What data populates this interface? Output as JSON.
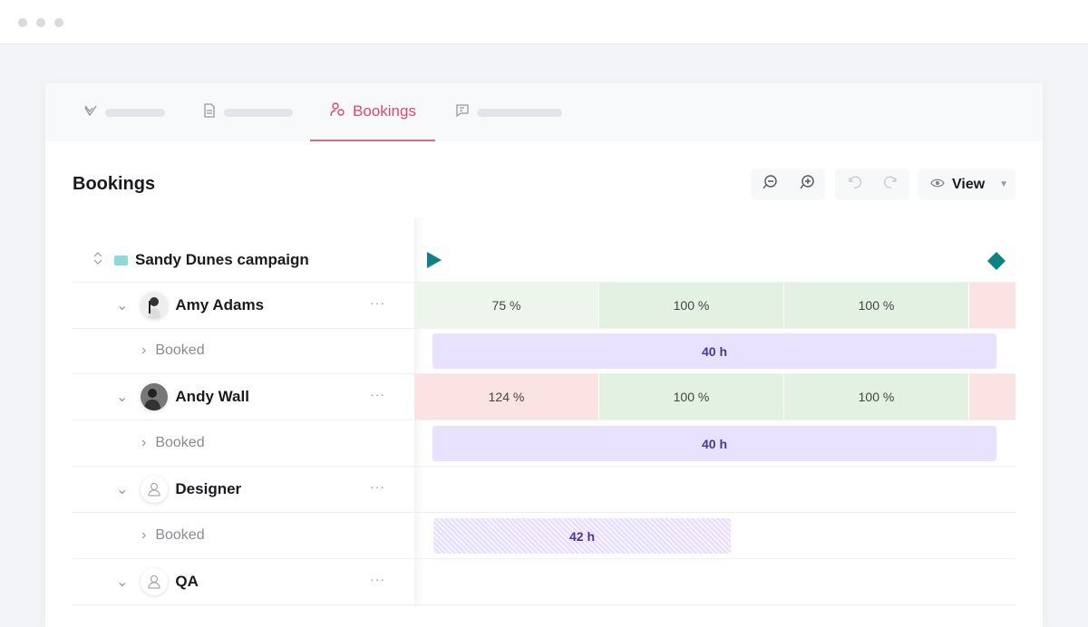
{
  "tabs": [
    {
      "icon": "check-icon"
    },
    {
      "icon": "document-icon"
    },
    {
      "label": "Bookings",
      "icon": "users-icon",
      "active": true
    },
    {
      "icon": "chat-icon"
    }
  ],
  "page_title": "Bookings",
  "toolbar": {
    "zoom_out": "zoom-out-icon",
    "zoom_in": "zoom-in-icon",
    "undo": "undo-icon",
    "redo": "redo-icon",
    "view_label": "View"
  },
  "project": {
    "name": "Sandy Dunes campaign",
    "color": "#8fdad6"
  },
  "colors": {
    "accent": "#e2466a",
    "milestone": "#0e8185",
    "over": "#fbe3e3",
    "ok": "#e3f1e2",
    "booked": "#e9e2ff"
  },
  "rows": [
    {
      "name": "Amy Adams",
      "avatar": "photo",
      "cells": [
        "75 %",
        "100 %",
        "100 %",
        ""
      ],
      "booked_label": "Booked",
      "booked_hours": "40 h"
    },
    {
      "name": "Andy Wall",
      "avatar": "photo",
      "cells": [
        "124 %",
        "100 %",
        "100 %",
        ""
      ],
      "booked_label": "Booked",
      "booked_hours": "40 h"
    },
    {
      "name": "Designer",
      "avatar": "placeholder",
      "booked_label": "Booked",
      "booked_hours": "42 h"
    },
    {
      "name": "QA",
      "avatar": "placeholder"
    }
  ]
}
